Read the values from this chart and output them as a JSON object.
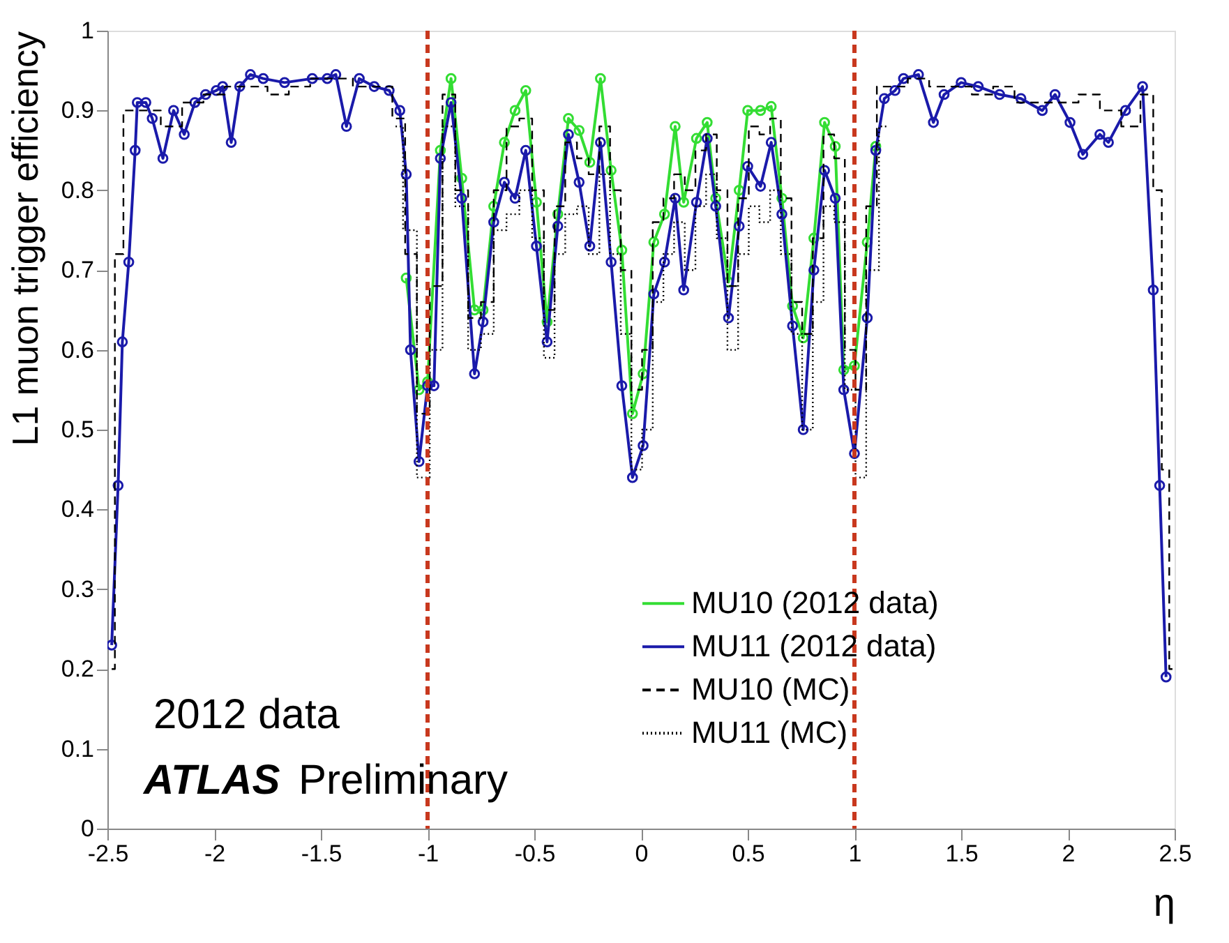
{
  "chart_data": {
    "type": "line",
    "xlabel": "η",
    "ylabel": "L1 muon trigger efficiency",
    "xlim": [
      -2.5,
      2.5
    ],
    "xticks": [
      -2.5,
      -2,
      -1.5,
      -1,
      -0.5,
      0,
      0.5,
      1,
      1.5,
      2,
      2.5
    ],
    "ylim": [
      0,
      1
    ],
    "yticks": [
      0,
      0.1,
      0.2,
      0.3,
      0.4,
      0.5,
      0.6,
      0.7,
      0.8,
      0.9,
      1
    ],
    "grid": false,
    "legend": "bottom right",
    "annotations": [
      "2012 data",
      "ATLAS Preliminary"
    ],
    "ref_lines": [
      {
        "axis": "x",
        "value": -1,
        "label": null,
        "color": "#c8381e",
        "line_style": "dashed"
      },
      {
        "axis": "x",
        "value": 1,
        "label": null,
        "color": "#c8381e",
        "line_style": "dashed"
      }
    ],
    "series": [
      {
        "name": "MU10 (2012 data)",
        "color": "#33dd33",
        "marker": "circle",
        "line_style": "solid",
        "x": [
          -1.1,
          -1.04,
          -1.0,
          -0.94,
          -0.89,
          -0.84,
          -0.78,
          -0.74,
          -0.69,
          -0.64,
          -0.59,
          -0.54,
          -0.49,
          -0.44,
          -0.39,
          -0.34,
          -0.29,
          -0.24,
          -0.19,
          -0.14,
          -0.09,
          -0.04,
          0.01,
          0.06,
          0.11,
          0.16,
          0.2,
          0.26,
          0.31,
          0.35,
          0.41,
          0.46,
          0.5,
          0.56,
          0.61,
          0.66,
          0.71,
          0.76,
          0.81,
          0.86,
          0.91,
          0.95,
          1.0,
          1.06,
          1.1
        ],
        "values": [
          0.69,
          0.55,
          0.56,
          0.85,
          0.94,
          0.815,
          0.65,
          0.65,
          0.78,
          0.86,
          0.9,
          0.925,
          0.785,
          0.635,
          0.77,
          0.89,
          0.875,
          0.835,
          0.94,
          0.825,
          0.725,
          0.52,
          0.57,
          0.735,
          0.77,
          0.88,
          0.785,
          0.865,
          0.885,
          0.79,
          0.685,
          0.8,
          0.9,
          0.9,
          0.905,
          0.79,
          0.655,
          0.615,
          0.74,
          0.885,
          0.855,
          0.575,
          0.58,
          0.735,
          0.855
        ]
      },
      {
        "name": "MU11 (2012 data)",
        "color": "#1a1aaa",
        "marker": "circle",
        "line_style": "solid",
        "x": [
          -2.48,
          -2.45,
          -2.43,
          -2.4,
          -2.37,
          -2.36,
          -2.32,
          -2.29,
          -2.24,
          -2.19,
          -2.14,
          -2.09,
          -2.04,
          -1.99,
          -1.96,
          -1.92,
          -1.88,
          -1.83,
          -1.77,
          -1.67,
          -1.54,
          -1.47,
          -1.43,
          -1.38,
          -1.32,
          -1.25,
          -1.18,
          -1.13,
          -1.1,
          -1.08,
          -1.04,
          -1.0,
          -0.97,
          -0.94,
          -0.89,
          -0.84,
          -0.78,
          -0.74,
          -0.69,
          -0.64,
          -0.59,
          -0.54,
          -0.49,
          -0.44,
          -0.39,
          -0.34,
          -0.29,
          -0.24,
          -0.19,
          -0.14,
          -0.09,
          -0.04,
          0.01,
          0.06,
          0.11,
          0.16,
          0.2,
          0.26,
          0.31,
          0.35,
          0.41,
          0.46,
          0.5,
          0.56,
          0.61,
          0.66,
          0.71,
          0.76,
          0.81,
          0.86,
          0.91,
          0.95,
          1.0,
          1.06,
          1.1,
          1.14,
          1.19,
          1.23,
          1.3,
          1.37,
          1.42,
          1.5,
          1.58,
          1.68,
          1.78,
          1.88,
          1.94,
          2.01,
          2.07,
          2.15,
          2.19,
          2.27,
          2.35,
          2.4,
          2.43,
          2.46
        ],
        "values": [
          0.23,
          0.43,
          0.61,
          0.71,
          0.85,
          0.91,
          0.91,
          0.89,
          0.84,
          0.9,
          0.87,
          0.91,
          0.92,
          0.925,
          0.93,
          0.86,
          0.93,
          0.945,
          0.94,
          0.935,
          0.94,
          0.94,
          0.945,
          0.88,
          0.94,
          0.93,
          0.925,
          0.9,
          0.82,
          0.6,
          0.46,
          0.555,
          0.555,
          0.84,
          0.91,
          0.79,
          0.57,
          0.635,
          0.76,
          0.81,
          0.79,
          0.85,
          0.73,
          0.61,
          0.755,
          0.87,
          0.81,
          0.73,
          0.86,
          0.71,
          0.555,
          0.44,
          0.48,
          0.67,
          0.71,
          0.79,
          0.675,
          0.785,
          0.865,
          0.78,
          0.64,
          0.755,
          0.83,
          0.805,
          0.86,
          0.77,
          0.63,
          0.5,
          0.7,
          0.825,
          0.79,
          0.55,
          0.47,
          0.64,
          0.85,
          0.915,
          0.925,
          0.94,
          0.945,
          0.885,
          0.92,
          0.935,
          0.93,
          0.92,
          0.915,
          0.9,
          0.92,
          0.885,
          0.845,
          0.87,
          0.86,
          0.9,
          0.93,
          0.675,
          0.43,
          0.19
        ]
      },
      {
        "name": "MU10 (MC)",
        "color": "#000000",
        "type": "step",
        "marker": "none",
        "line_style": "dashed",
        "x": [
          -2.48,
          -2.45,
          -2.4,
          -2.3,
          -2.2,
          -2.1,
          -2.0,
          -1.9,
          -1.8,
          -1.7,
          -1.6,
          -1.5,
          -1.4,
          -1.3,
          -1.2,
          -1.13,
          -1.08,
          -1.02,
          -0.96,
          -0.9,
          -0.84,
          -0.78,
          -0.72,
          -0.66,
          -0.6,
          -0.54,
          -0.48,
          -0.43,
          -0.38,
          -0.33,
          -0.27,
          -0.22,
          -0.17,
          -0.12,
          -0.07,
          -0.02,
          0.03,
          0.08,
          0.13,
          0.18,
          0.23,
          0.28,
          0.33,
          0.38,
          0.43,
          0.48,
          0.53,
          0.58,
          0.63,
          0.68,
          0.73,
          0.78,
          0.83,
          0.88,
          0.93,
          0.98,
          1.03,
          1.08,
          1.13,
          1.2,
          1.3,
          1.4,
          1.5,
          1.6,
          1.7,
          1.8,
          1.9,
          2.0,
          2.1,
          2.2,
          2.3,
          2.38,
          2.42,
          2.46,
          2.49
        ],
        "values": [
          0.2,
          0.72,
          0.9,
          0.9,
          0.88,
          0.91,
          0.92,
          0.93,
          0.93,
          0.92,
          0.93,
          0.94,
          0.94,
          0.93,
          0.93,
          0.89,
          0.72,
          0.52,
          0.68,
          0.92,
          0.8,
          0.64,
          0.66,
          0.8,
          0.88,
          0.89,
          0.8,
          0.65,
          0.78,
          0.86,
          0.84,
          0.82,
          0.88,
          0.8,
          0.7,
          0.55,
          0.6,
          0.76,
          0.79,
          0.82,
          0.8,
          0.85,
          0.87,
          0.8,
          0.68,
          0.79,
          0.88,
          0.87,
          0.89,
          0.79,
          0.66,
          0.62,
          0.74,
          0.87,
          0.84,
          0.6,
          0.55,
          0.78,
          0.93,
          0.93,
          0.94,
          0.93,
          0.93,
          0.92,
          0.93,
          0.91,
          0.91,
          0.91,
          0.92,
          0.9,
          0.88,
          0.92,
          0.8,
          0.45,
          0.2
        ]
      },
      {
        "name": "MU11 (MC)",
        "color": "#000000",
        "type": "step",
        "marker": "none",
        "line_style": "dotted",
        "x": [
          -1.15,
          -1.08,
          -1.02,
          -0.96,
          -0.9,
          -0.84,
          -0.78,
          -0.72,
          -0.66,
          -0.6,
          -0.54,
          -0.48,
          -0.43,
          -0.38,
          -0.33,
          -0.27,
          -0.22,
          -0.17,
          -0.12,
          -0.07,
          -0.02,
          0.03,
          0.08,
          0.13,
          0.18,
          0.23,
          0.28,
          0.33,
          0.38,
          0.43,
          0.48,
          0.53,
          0.58,
          0.63,
          0.68,
          0.73,
          0.78,
          0.83,
          0.88,
          0.93,
          0.98,
          1.03,
          1.08,
          1.15
        ],
        "values": [
          0.88,
          0.75,
          0.44,
          0.6,
          0.88,
          0.78,
          0.6,
          0.62,
          0.75,
          0.77,
          0.8,
          0.74,
          0.59,
          0.72,
          0.77,
          0.78,
          0.72,
          0.82,
          0.72,
          0.62,
          0.45,
          0.5,
          0.66,
          0.72,
          0.76,
          0.7,
          0.78,
          0.82,
          0.74,
          0.6,
          0.72,
          0.78,
          0.76,
          0.8,
          0.72,
          0.62,
          0.5,
          0.66,
          0.78,
          0.76,
          0.55,
          0.44,
          0.7,
          0.88
        ]
      }
    ]
  }
}
